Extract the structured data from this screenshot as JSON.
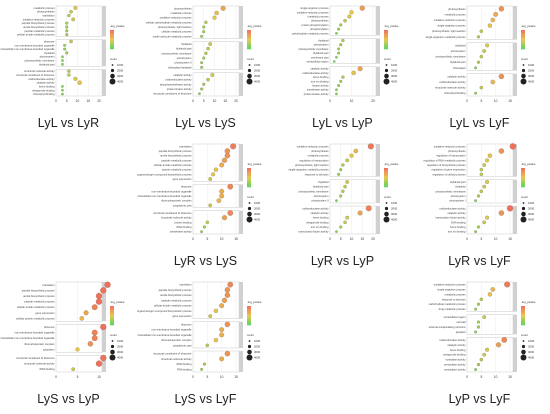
{
  "colors": {
    "low": "#5ed35e",
    "mid": "#e8c84a",
    "high": "#f0705a",
    "strip": "#d0d0d0",
    "grid": "#e6e6e6"
  },
  "legend": {
    "color_title": "-log_pvalue",
    "size_title": "count",
    "size_levels": [
      "1000",
      "2000",
      "3000",
      "4000"
    ]
  },
  "chart_data": [
    {
      "type": "scatter",
      "title": "LyL vs LyR",
      "facets": [
        {
          "terms": [
            "metabolic process",
            "photosynthesis",
            "translation",
            "oxidation-reduction process",
            "peptide biosynthetic process",
            "amide biosynthetic process",
            "peptide metabolic process",
            "cellular amide metabolic process"
          ],
          "values": [
            9,
            7,
            6,
            8,
            5,
            5,
            5,
            5
          ]
        },
        {
          "terms": [
            "ribosome",
            "non-membrane-bounded organelle",
            "intracellular non-membrane-bounded organelle",
            "thylakoid",
            "photosystem",
            "photosynthetic membrane",
            "thylakoid part"
          ],
          "values": [
            7,
            4,
            4,
            5,
            3,
            3,
            3
          ]
        },
        {
          "terms": [
            "structural molecule activity",
            "structural constituent of ribosome",
            "oxidoreductase activity",
            "catalytic activity",
            "heme binding",
            "tetrapyrrole binding",
            "chlorophyll binding"
          ],
          "values": [
            6,
            6,
            9,
            11,
            3,
            3,
            3
          ]
        }
      ],
      "xticks": [
        "0",
        "5",
        "10",
        "15",
        "20"
      ]
    },
    {
      "type": "scatter",
      "title": "LyL vs LyS",
      "facets": [
        {
          "terms": [
            "photosynthesis",
            "metabolic process",
            "oxidation-reduction process",
            "cellular carbohydrate metabolic process",
            "photosynthesis, light reaction",
            "cellular metabolic process",
            "small molecule metabolic process"
          ],
          "values": [
            14,
            11,
            10,
            6,
            5,
            5,
            4
          ]
        },
        {
          "terms": [
            "thylakoid",
            "thylakoid part",
            "photosynthetic membrane",
            "photosystem",
            "photosystem II",
            "chloroplast thylakoid"
          ],
          "values": [
            8,
            7,
            6,
            5,
            4,
            4
          ]
        },
        {
          "terms": [
            "catalytic activity",
            "oxidoreductase activity",
            "phosphotransferase activity",
            "protein kinase activity",
            "structural constituent of ribosome"
          ],
          "values": [
            9,
            7,
            5,
            4,
            3
          ]
        }
      ],
      "xticks": [
        "0",
        "5",
        "10",
        "15",
        "20"
      ]
    },
    {
      "type": "scatter",
      "title": "LyL vs LyP",
      "facets": [
        {
          "terms": [
            "single-organism process",
            "oxidation-reduction process",
            "metabolic process",
            "photosynthesis",
            "protein phosphorylation",
            "phosphorylation",
            "carbohydrate metabolic process"
          ],
          "values": [
            15,
            10,
            9,
            7,
            5,
            4,
            3
          ]
        },
        {
          "terms": [
            "thylakoid",
            "photosystem",
            "photosynthetic membrane",
            "thylakoid part",
            "membrane part",
            "extracellular region"
          ],
          "values": [
            6,
            5,
            4,
            4,
            3,
            2
          ]
        },
        {
          "terms": [
            "catalytic activity",
            "oxidoreductase activity",
            "heme binding",
            "iron ion binding",
            "kinase activity",
            "transferase activity",
            "protein kinase activity"
          ],
          "values": [
            14,
            11,
            6,
            5,
            4,
            3,
            3
          ]
        }
      ],
      "xticks": [
        "0",
        "10",
        "20"
      ]
    },
    {
      "type": "scatter",
      "title": "LyL vs LyF",
      "facets": [
        {
          "terms": [
            "photosynthesis",
            "metabolic process",
            "oxidation-reduction process",
            "single-organism process",
            "photosynthesis, light reaction",
            "single-organism metabolic process"
          ],
          "values": [
            12,
            10,
            9,
            8,
            5,
            4
          ]
        },
        {
          "terms": [
            "thylakoid",
            "photosystem",
            "photosynthetic membrane",
            "thylakoid part",
            "chloroplast"
          ],
          "values": [
            7,
            6,
            5,
            4,
            3
          ]
        },
        {
          "terms": [
            "catalytic activity",
            "oxidoreductase activity",
            "structural molecule activity",
            "chlorophyll binding"
          ],
          "values": [
            12,
            9,
            5,
            3
          ]
        }
      ],
      "xticks": [
        "0",
        "5",
        "10",
        "15"
      ]
    },
    {
      "type": "scatter",
      "title": "LyR vs LyS",
      "facets": [
        {
          "terms": [
            "translation",
            "peptide biosynthetic process",
            "amide biosynthetic process",
            "peptide metabolic process",
            "cellular amide metabolic process",
            "protein metabolic process",
            "organonitrogen compound biosynthetic process",
            "gene expression"
          ],
          "values": [
            14,
            12,
            12,
            11,
            10,
            8,
            7,
            6
          ]
        },
        {
          "terms": [
            "ribosome",
            "non-membrane-bounded organelle",
            "intracellular non-membrane-bounded organelle",
            "ribonucleoprotein complex",
            "cytoplasmic part"
          ],
          "values": [
            13,
            10,
            10,
            9,
            6
          ]
        },
        {
          "terms": [
            "structural constituent of ribosome",
            "structural molecule activity",
            "protein binding",
            "rRNA binding",
            "transferase activity"
          ],
          "values": [
            13,
            11,
            5,
            4,
            3
          ]
        }
      ],
      "xticks": [
        "0",
        "5",
        "10",
        "15"
      ]
    },
    {
      "type": "scatter",
      "title": "LyR vs LyP",
      "facets": [
        {
          "terms": [
            "oxidation-reduction process",
            "photosynthesis",
            "metabolic process",
            "regulation of transcription",
            "photosynthesis, light reaction",
            "single-organism metabolic process",
            "response to stimulus"
          ],
          "values": [
            19,
            12,
            10,
            8,
            6,
            5,
            4
          ]
        },
        {
          "terms": [
            "thylakoid",
            "thylakoid part",
            "photosynthetic membrane",
            "photosystem",
            "photosystem II"
          ],
          "values": [
            8,
            7,
            6,
            5,
            3
          ]
        },
        {
          "terms": [
            "oxidoreductase activity",
            "catalytic activity",
            "heme binding",
            "tetrapyrrole binding",
            "iron ion binding",
            "transcription factor activity"
          ],
          "values": [
            18,
            14,
            8,
            7,
            5,
            3
          ]
        }
      ],
      "xticks": [
        "0",
        "5",
        "10",
        "15",
        "20"
      ]
    },
    {
      "type": "scatter",
      "title": "LyR vs LyF",
      "facets": [
        {
          "terms": [
            "oxidation-reduction process",
            "photosynthesis",
            "regulation of transcription",
            "regulation of RNA metabolic process",
            "regulation of biosynthetic process",
            "regulation of gene expression",
            "regulation of cellular process"
          ],
          "values": [
            16,
            12,
            8,
            7,
            6,
            5,
            5
          ]
        },
        {
          "terms": [
            "thylakoid part",
            "thylakoid",
            "photosynthetic membrane",
            "photosystem",
            "photosystem I"
          ],
          "values": [
            7,
            6,
            5,
            4,
            3
          ]
        },
        {
          "terms": [
            "oxidoreductase activity",
            "catalytic activity",
            "transcription factor activity",
            "DNA binding",
            "heme binding",
            "iron ion binding"
          ],
          "values": [
            15,
            12,
            7,
            6,
            4,
            3
          ]
        }
      ],
      "xticks": [
        "0",
        "5",
        "10",
        "15"
      ]
    },
    {
      "type": "scatter",
      "title": "LyS vs LyP",
      "facets": [
        {
          "terms": [
            "translation",
            "peptide biosynthetic process",
            "amide biosynthetic process",
            "peptide metabolic process",
            "cellular amide metabolic process",
            "gene expression",
            "cellular protein metabolic process"
          ],
          "values": [
            12,
            11,
            10,
            10,
            9,
            7,
            6
          ]
        },
        {
          "terms": [
            "ribosome",
            "non-membrane-bounded organelle",
            "intracellular non-membrane-bounded organelle",
            "ribonucleoprotein complex",
            "cytoplasm"
          ],
          "values": [
            11,
            9,
            9,
            8,
            5
          ]
        },
        {
          "terms": [
            "structural constituent of ribosome",
            "structural molecule activity",
            "rRNA binding"
          ],
          "values": [
            11,
            10,
            4
          ]
        }
      ],
      "xticks": [
        "0",
        "5",
        "10"
      ]
    },
    {
      "type": "scatter",
      "title": "LyS vs LyF",
      "facets": [
        {
          "terms": [
            "translation",
            "peptide biosynthetic process",
            "amide biosynthetic process",
            "peptide metabolic process",
            "cellular amide metabolic process",
            "organonitrogen compound biosynthetic process",
            "gene expression"
          ],
          "values": [
            13,
            12,
            12,
            11,
            10,
            8,
            6
          ]
        },
        {
          "terms": [
            "ribosome",
            "non-membrane-bounded organelle",
            "intracellular non-membrane-bounded organelle",
            "ribonucleoprotein complex",
            "cytoplasmic part"
          ],
          "values": [
            12,
            10,
            10,
            8,
            5
          ]
        },
        {
          "terms": [
            "structural constituent of ribosome",
            "structural molecule activity",
            "rRNA binding",
            "RNA binding"
          ],
          "values": [
            12,
            10,
            4,
            3
          ]
        }
      ],
      "xticks": [
        "0",
        "5",
        "10",
        "15"
      ]
    },
    {
      "type": "scatter",
      "title": "LyP vs LyF",
      "facets": [
        {
          "terms": [
            "oxidation-reduction process",
            "single-organism process",
            "metabolic process",
            "response to stimulus",
            "carbohydrate metabolic process",
            "drug metabolic process"
          ],
          "values": [
            14,
            9,
            8,
            5,
            4,
            3
          ]
        },
        {
          "terms": [
            "extracellular region",
            "cell wall",
            "external encapsulating structure",
            "apoplast"
          ],
          "values": [
            6,
            4,
            4,
            3
          ]
        },
        {
          "terms": [
            "oxidoreductase activity",
            "catalytic activity",
            "heme binding",
            "tetrapyrrole binding",
            "hydrolase activity",
            "peroxidase activity",
            "antioxidant activity"
          ],
          "values": [
            13,
            11,
            7,
            6,
            5,
            4,
            3
          ]
        }
      ],
      "xticks": [
        "0",
        "5",
        "10",
        "15"
      ]
    }
  ]
}
